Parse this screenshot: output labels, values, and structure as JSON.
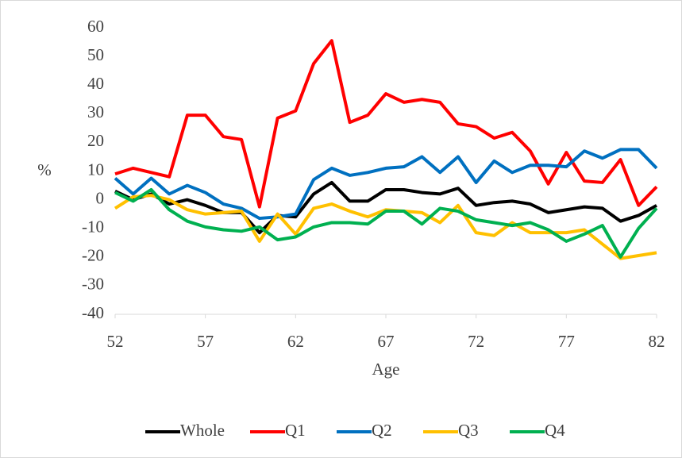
{
  "chart_data": {
    "type": "line",
    "xlabel": "Age",
    "ylabel": "%",
    "x": [
      52,
      53,
      54,
      55,
      56,
      57,
      58,
      59,
      60,
      61,
      62,
      63,
      64,
      65,
      66,
      67,
      68,
      69,
      70,
      71,
      72,
      73,
      74,
      75,
      76,
      77,
      78,
      79,
      80,
      81,
      82
    ],
    "xlim": [
      52,
      82
    ],
    "xticks": [
      52,
      57,
      62,
      67,
      72,
      77,
      82
    ],
    "ylim": [
      -40,
      60
    ],
    "yticks": [
      -40,
      -30,
      -20,
      -10,
      0,
      10,
      20,
      30,
      40,
      50,
      60
    ],
    "grid": false,
    "legend": "bottom",
    "series": [
      {
        "name": "Whole",
        "color": "#000000",
        "values": [
          3,
          0,
          2,
          -1.5,
          0,
          -2,
          -4.5,
          -4.5,
          -11.5,
          -5.5,
          -6,
          2,
          6,
          -0.5,
          -0.5,
          3.5,
          3.5,
          2.5,
          2,
          4,
          -2,
          -1,
          -0.5,
          -1.5,
          -4.5,
          -3.5,
          -2.5,
          -3,
          -7.5,
          -5.5,
          -2
        ]
      },
      {
        "name": "Q1",
        "color": "#ff0000",
        "values": [
          9,
          11,
          9.5,
          8,
          29.5,
          29.5,
          22,
          21,
          -2.5,
          28.5,
          31,
          47.5,
          55.5,
          27,
          29.5,
          37,
          34,
          35,
          34,
          26.5,
          25.5,
          21.5,
          23.5,
          17,
          5.5,
          16.5,
          6.5,
          6,
          14,
          -2,
          4.5
        ]
      },
      {
        "name": "Q2",
        "color": "#0070c0",
        "values": [
          7.5,
          2,
          7.5,
          2,
          5,
          2.5,
          -1.5,
          -3,
          -6.5,
          -6,
          -5,
          7,
          11,
          8.5,
          9.5,
          11,
          11.5,
          15,
          9.5,
          15,
          6,
          13.5,
          9.5,
          12,
          12,
          11.5,
          17,
          14.5,
          17.5,
          17.5,
          11
        ]
      },
      {
        "name": "Q3",
        "color": "#ffc000",
        "values": [
          -3,
          1,
          1.5,
          0,
          -3.5,
          -5,
          -4.5,
          -4,
          -14.5,
          -5,
          -12,
          -3,
          -1.5,
          -4,
          -6,
          -3.5,
          -4,
          -4.5,
          -8,
          -2,
          -11.5,
          -12.5,
          -8,
          -11.5,
          -11.5,
          -11.5,
          -10.5,
          -15.5,
          -20.5,
          -19.5,
          -18.5
        ]
      },
      {
        "name": "Q4",
        "color": "#00b050",
        "values": [
          2.5,
          -0.5,
          3.5,
          -3.5,
          -7.5,
          -9.5,
          -10.5,
          -11,
          -9.5,
          -14,
          -13,
          -9.5,
          -8,
          -8,
          -8.5,
          -4,
          -4,
          -8.5,
          -3,
          -4,
          -7,
          -8,
          -9,
          -8,
          -10.5,
          -14.5,
          -12,
          -9,
          -20,
          -10,
          -3
        ]
      }
    ]
  }
}
